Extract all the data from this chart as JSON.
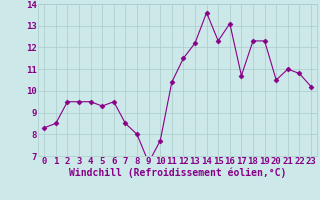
{
  "x": [
    0,
    1,
    2,
    3,
    4,
    5,
    6,
    7,
    8,
    9,
    10,
    11,
    12,
    13,
    14,
    15,
    16,
    17,
    18,
    19,
    20,
    21,
    22,
    23
  ],
  "y": [
    8.3,
    8.5,
    9.5,
    9.5,
    9.5,
    9.3,
    9.5,
    8.5,
    8.0,
    6.7,
    7.7,
    10.4,
    11.5,
    12.2,
    13.6,
    12.3,
    13.1,
    10.7,
    12.3,
    12.3,
    10.5,
    11.0,
    10.8,
    10.2
  ],
  "line_color": "#880088",
  "marker": "D",
  "marker_size": 2.5,
  "bg_color": "#cce8e8",
  "grid_color": "#aacccc",
  "xlabel": "Windchill (Refroidissement éolien,°C)",
  "ylabel": "",
  "ylim": [
    7,
    14
  ],
  "xlim_min": -0.5,
  "xlim_max": 23.5,
  "xticks": [
    0,
    1,
    2,
    3,
    4,
    5,
    6,
    7,
    8,
    9,
    10,
    11,
    12,
    13,
    14,
    15,
    16,
    17,
    18,
    19,
    20,
    21,
    22,
    23
  ],
  "yticks": [
    7,
    8,
    9,
    10,
    11,
    12,
    13,
    14
  ],
  "label_color": "#880088",
  "tick_fontsize": 6.5,
  "xlabel_fontsize": 7.0
}
